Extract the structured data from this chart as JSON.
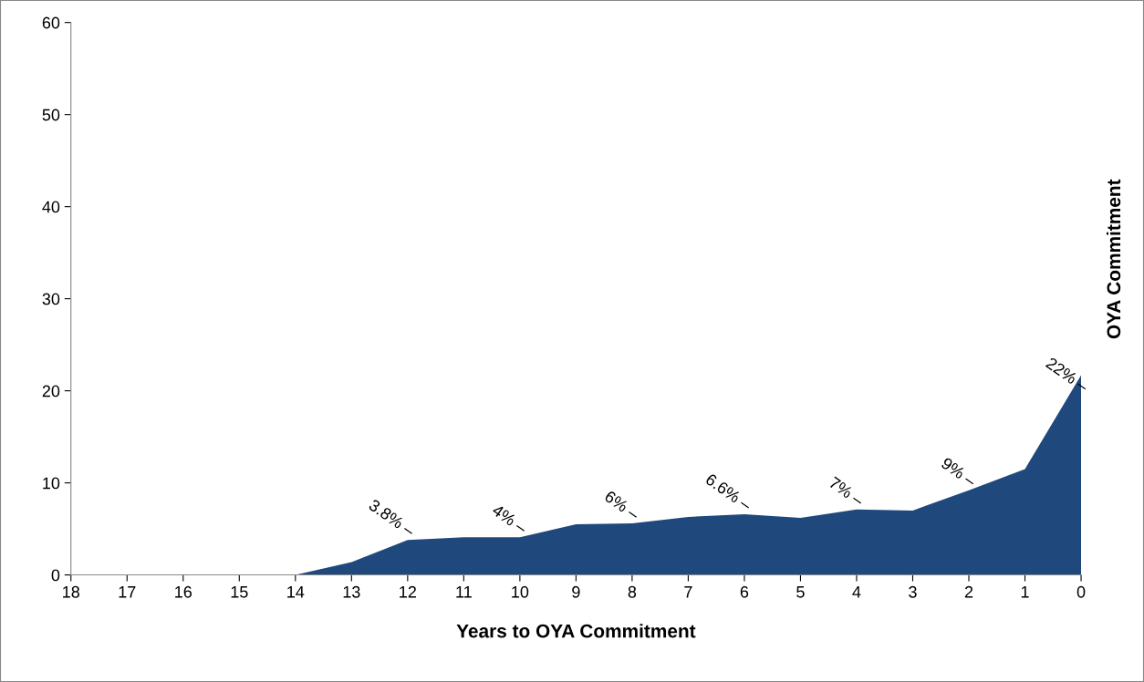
{
  "chart_data": {
    "type": "area",
    "xlabel": "Years to OYA Commitment",
    "x": [
      18,
      17,
      16,
      15,
      14,
      13,
      12,
      11,
      10,
      9,
      8,
      7,
      6,
      5,
      4,
      3,
      2,
      1,
      0
    ],
    "series": [
      {
        "color": "#1f497d",
        "values": [
          0,
          0,
          0,
          0,
          0,
          1.4,
          3.8,
          4.1,
          4.1,
          5.5,
          5.6,
          6.3,
          6.6,
          6.2,
          7.1,
          7.0,
          9.2,
          11.5,
          21.7
        ]
      }
    ],
    "xlim": [
      18,
      0
    ],
    "xticks": [
      18,
      17,
      16,
      15,
      14,
      13,
      12,
      11,
      10,
      9,
      8,
      7,
      6,
      5,
      4,
      3,
      2,
      1,
      0
    ],
    "ylim": [
      0,
      60
    ],
    "yticks": [
      0,
      10,
      20,
      30,
      40,
      50,
      60
    ],
    "grid": false,
    "annotations": [
      {
        "text": "3.8% –",
        "x": 12,
        "y": 3.8
      },
      {
        "text": "4% –",
        "x": 10,
        "y": 4.1
      },
      {
        "text": "6% –",
        "x": 8,
        "y": 5.6
      },
      {
        "text": "6.6% –",
        "x": 6,
        "y": 6.6
      },
      {
        "text": "7% –",
        "x": 4,
        "y": 7.1
      },
      {
        "text": "9% –",
        "x": 2,
        "y": 9.2
      },
      {
        "text": "22% –",
        "x": 0,
        "y": 19.5
      },
      "OYA Commitment"
    ]
  }
}
